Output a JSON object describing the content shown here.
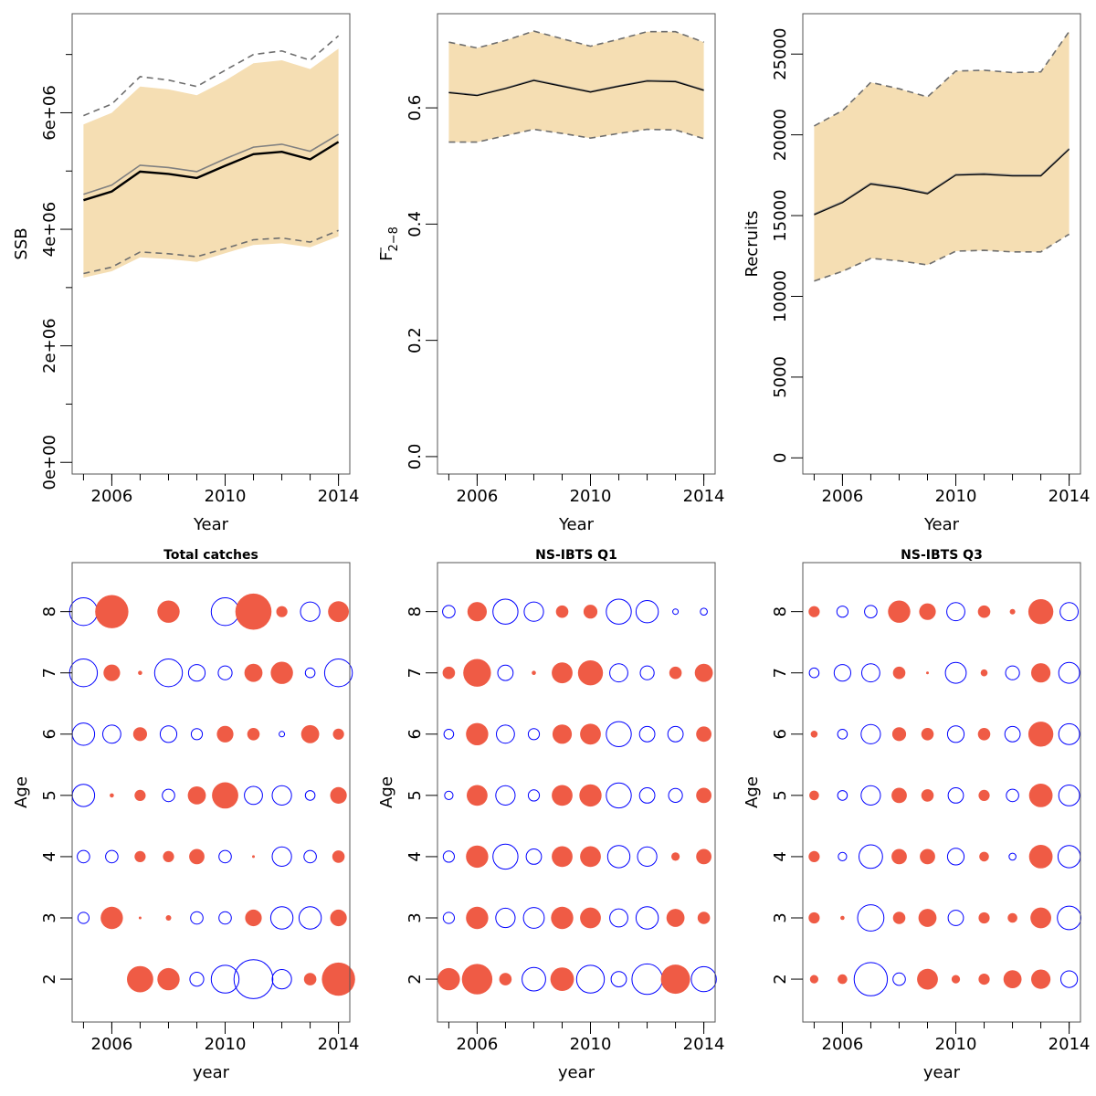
{
  "colors": {
    "ribbon": "#f5deb3",
    "estimate": "#000000",
    "second_line": "#808080",
    "band_dashed": "#6e6e6e",
    "positive": "#ef5b45",
    "negative": "#0000ff"
  },
  "chart_data": [
    {
      "type": "area",
      "panel": "ssb",
      "title": "",
      "xlabel": "Year",
      "ylabel": "SSB",
      "xlim": [
        2004.6,
        2014.4
      ],
      "ylim": [
        -200000,
        7700000
      ],
      "x_ticks": [
        2006,
        2010,
        2014
      ],
      "x_minor_ticks": [
        2005,
        2006,
        2007,
        2008,
        2009,
        2010,
        2011,
        2012,
        2013,
        2014
      ],
      "y_ticks": [
        0,
        2000000,
        4000000,
        6000000
      ],
      "y_tick_labels": [
        "0e+00",
        "2e+06",
        "4e+06",
        "6e+06"
      ],
      "y_minor_ticks": [
        1000000,
        3000000,
        5000000,
        7000000
      ],
      "x": [
        2005,
        2006,
        2007,
        2008,
        2009,
        2010,
        2011,
        2012,
        2013,
        2014
      ],
      "series": [
        {
          "role": "ribbon_upper",
          "values": [
            5800000,
            6000000,
            6450000,
            6400000,
            6300000,
            6550000,
            6850000,
            6900000,
            6750000,
            7100000
          ]
        },
        {
          "role": "ribbon_lower",
          "values": [
            3170000,
            3280000,
            3520000,
            3490000,
            3440000,
            3590000,
            3730000,
            3760000,
            3690000,
            3880000
          ]
        },
        {
          "role": "estimate",
          "values": [
            4500000,
            4650000,
            4990000,
            4950000,
            4880000,
            5090000,
            5290000,
            5330000,
            5200000,
            5500000
          ]
        },
        {
          "role": "second_estimate",
          "values": [
            4600000,
            4760000,
            5100000,
            5060000,
            4990000,
            5210000,
            5410000,
            5460000,
            5340000,
            5630000
          ]
        },
        {
          "role": "upper_dashed",
          "values": [
            5950000,
            6150000,
            6620000,
            6560000,
            6450000,
            6730000,
            7000000,
            7060000,
            6900000,
            7320000
          ]
        },
        {
          "role": "lower_dashed",
          "values": [
            3240000,
            3350000,
            3610000,
            3580000,
            3530000,
            3670000,
            3820000,
            3850000,
            3780000,
            3980000
          ]
        }
      ]
    },
    {
      "type": "area",
      "panel": "fbar",
      "title": "",
      "xlabel": "Year",
      "ylabel": "F",
      "ylabel_sub": "2−8",
      "xlim": [
        2004.6,
        2014.4
      ],
      "ylim": [
        -0.03,
        0.762
      ],
      "x_ticks": [
        2006,
        2010,
        2014
      ],
      "x_minor_ticks": [
        2005,
        2006,
        2007,
        2008,
        2009,
        2010,
        2011,
        2012,
        2013,
        2014
      ],
      "y_ticks": [
        0,
        0.2,
        0.4,
        0.6
      ],
      "y_tick_labels": [
        "0.0",
        "0.2",
        "0.4",
        "0.6"
      ],
      "y_minor_ticks": [],
      "x": [
        2005,
        2006,
        2007,
        2008,
        2009,
        2010,
        2011,
        2012,
        2013,
        2014
      ],
      "series": [
        {
          "role": "ribbon_upper",
          "values": [
            0.713,
            0.703,
            0.716,
            0.732,
            0.719,
            0.706,
            0.718,
            0.731,
            0.731,
            0.713
          ]
        },
        {
          "role": "ribbon_lower",
          "values": [
            0.541,
            0.541,
            0.552,
            0.563,
            0.556,
            0.548,
            0.556,
            0.563,
            0.562,
            0.547
          ]
        },
        {
          "role": "estimate",
          "values": [
            0.626,
            0.621,
            0.633,
            0.647,
            0.637,
            0.627,
            0.637,
            0.646,
            0.645,
            0.63
          ]
        },
        {
          "role": "second_estimate",
          "values": [
            0.627,
            0.622,
            0.634,
            0.648,
            0.638,
            0.628,
            0.638,
            0.647,
            0.646,
            0.631
          ]
        },
        {
          "role": "upper_dashed",
          "values": [
            0.713,
            0.703,
            0.716,
            0.732,
            0.719,
            0.706,
            0.718,
            0.731,
            0.731,
            0.713
          ]
        },
        {
          "role": "lower_dashed",
          "values": [
            0.541,
            0.541,
            0.552,
            0.563,
            0.556,
            0.548,
            0.556,
            0.563,
            0.562,
            0.547
          ]
        }
      ]
    },
    {
      "type": "area",
      "panel": "recruits",
      "title": "",
      "xlabel": "Year",
      "ylabel": "Recruits",
      "xlim": [
        2004.6,
        2014.4
      ],
      "ylim": [
        -1000,
        27500
      ],
      "x_ticks": [
        2006,
        2010,
        2014
      ],
      "x_minor_ticks": [
        2005,
        2006,
        2007,
        2008,
        2009,
        2010,
        2011,
        2012,
        2013,
        2014
      ],
      "y_ticks": [
        0,
        5000,
        10000,
        15000,
        20000,
        25000
      ],
      "y_tick_labels": [
        "0",
        "5000",
        "10000",
        "15000",
        "20000",
        "25000"
      ],
      "y_minor_ticks": [],
      "x": [
        2005,
        2006,
        2007,
        2008,
        2009,
        2010,
        2011,
        2012,
        2013,
        2014
      ],
      "series": [
        {
          "role": "ribbon_upper",
          "values": [
            20550,
            21500,
            23250,
            22850,
            22350,
            23950,
            24000,
            23850,
            23900,
            26400
          ]
        },
        {
          "role": "ribbon_lower",
          "values": [
            10950,
            11550,
            12350,
            12200,
            11950,
            12800,
            12850,
            12750,
            12750,
            13850
          ]
        },
        {
          "role": "estimate",
          "values": [
            15050,
            15800,
            16950,
            16700,
            16350,
            17500,
            17550,
            17450,
            17450,
            19100
          ]
        },
        {
          "role": "second_estimate",
          "values": [
            15100,
            15850,
            17000,
            16750,
            16400,
            17550,
            17600,
            17500,
            17500,
            19150
          ]
        },
        {
          "role": "upper_dashed",
          "values": [
            20550,
            21500,
            23250,
            22850,
            22350,
            23950,
            24000,
            23850,
            23900,
            26400
          ]
        },
        {
          "role": "lower_dashed",
          "values": [
            10950,
            11550,
            12350,
            12200,
            11950,
            12800,
            12850,
            12750,
            12750,
            13850
          ]
        }
      ]
    },
    {
      "type": "scatter",
      "panel": "total_catches",
      "title": "Total catches",
      "xlabel": "year",
      "ylabel": "Age",
      "xlim": [
        2004.6,
        2014.4
      ],
      "ylim": [
        1.3,
        8.8
      ],
      "x_ticks": [
        2006,
        2010,
        2014
      ],
      "x_minor_ticks": [
        2005,
        2006,
        2007,
        2008,
        2009,
        2010,
        2011,
        2012,
        2013,
        2014
      ],
      "y_ticks": [
        2,
        3,
        4,
        5,
        6,
        7,
        8
      ],
      "years": [
        2005,
        2006,
        2007,
        2008,
        2009,
        2010,
        2011,
        2012,
        2013,
        2014
      ],
      "ages": [
        2,
        3,
        4,
        5,
        6,
        7,
        8
      ],
      "residuals": [
        [
          0,
          0,
          1.9,
          1.6,
          -1.0,
          -2.0,
          -2.8,
          -1.4,
          0.9,
          2.4
        ],
        [
          -0.8,
          1.6,
          0.2,
          0.4,
          -0.9,
          -0.9,
          1.2,
          -1.6,
          -1.6,
          1.2
        ],
        [
          -0.9,
          -0.9,
          0.8,
          0.8,
          1.1,
          -0.9,
          0.2,
          -1.4,
          -0.9,
          0.9
        ],
        [
          -1.6,
          0.3,
          0.8,
          -0.9,
          1.3,
          1.9,
          -1.3,
          -1.4,
          -0.7,
          1.2
        ],
        [
          -1.6,
          -1.3,
          1.0,
          -1.2,
          -0.8,
          1.2,
          0.9,
          -0.4,
          1.3,
          0.8
        ],
        [
          -2.0,
          1.2,
          0.3,
          -2.0,
          -1.2,
          -1.0,
          1.3,
          1.6,
          -0.7,
          -2.0
        ],
        [
          -2.0,
          2.4,
          0,
          1.6,
          0,
          -2.0,
          2.6,
          0.8,
          -1.4,
          1.5
        ]
      ]
    },
    {
      "type": "scatter",
      "panel": "ns_ibts_q1",
      "title": "NS-IBTS Q1",
      "xlabel": "year",
      "ylabel": "Age",
      "xlim": [
        2004.6,
        2014.4
      ],
      "ylim": [
        1.3,
        8.8
      ],
      "x_ticks": [
        2006,
        2010,
        2014
      ],
      "x_minor_ticks": [
        2005,
        2006,
        2007,
        2008,
        2009,
        2010,
        2011,
        2012,
        2013,
        2014
      ],
      "y_ticks": [
        2,
        3,
        4,
        5,
        6,
        7,
        8
      ],
      "years": [
        2005,
        2006,
        2007,
        2008,
        2009,
        2010,
        2011,
        2012,
        2013,
        2014
      ],
      "ages": [
        2,
        3,
        4,
        5,
        6,
        7,
        8
      ],
      "residuals": [
        [
          1.6,
          2.2,
          0.9,
          -1.7,
          1.7,
          -2.0,
          -1.1,
          -2.2,
          2.1,
          -1.8
        ],
        [
          -0.8,
          1.6,
          -1.4,
          -1.5,
          1.6,
          1.5,
          -1.3,
          -1.6,
          1.3,
          0.9
        ],
        [
          -0.8,
          1.6,
          -1.8,
          -1.1,
          1.5,
          1.5,
          -1.6,
          -1.4,
          0.6,
          1.1
        ],
        [
          -0.6,
          1.5,
          -1.4,
          -0.8,
          1.5,
          1.6,
          -1.8,
          -1.1,
          -1.0,
          1.1
        ],
        [
          -0.7,
          1.6,
          -1.3,
          -0.8,
          1.4,
          1.5,
          -1.8,
          -1.1,
          -1.1,
          1.1
        ],
        [
          0.9,
          2.0,
          -1.1,
          0.3,
          1.5,
          1.8,
          -1.3,
          -1.0,
          0.9,
          1.3
        ],
        [
          -0.9,
          1.4,
          -1.8,
          -1.4,
          0.9,
          1.0,
          -1.8,
          -1.6,
          -0.4,
          -0.5
        ]
      ]
    },
    {
      "type": "scatter",
      "panel": "ns_ibts_q3",
      "title": "NS-IBTS Q3",
      "xlabel": "year",
      "ylabel": "Age",
      "xlim": [
        2004.6,
        2014.4
      ],
      "ylim": [
        1.3,
        8.8
      ],
      "x_ticks": [
        2006,
        2010,
        2014
      ],
      "x_minor_ticks": [
        2005,
        2006,
        2007,
        2008,
        2009,
        2010,
        2011,
        2012,
        2013,
        2014
      ],
      "y_ticks": [
        2,
        3,
        4,
        5,
        6,
        7,
        8
      ],
      "years": [
        2005,
        2006,
        2007,
        2008,
        2009,
        2010,
        2011,
        2012,
        2013,
        2014
      ],
      "ages": [
        2,
        3,
        4,
        5,
        6,
        7,
        8
      ],
      "residuals": [
        [
          0.6,
          0.7,
          -2.4,
          -0.9,
          1.5,
          0.6,
          0.8,
          1.3,
          1.4,
          -1.2
        ],
        [
          0.8,
          0.3,
          -1.9,
          0.9,
          1.3,
          -1.1,
          0.8,
          0.7,
          1.5,
          -1.7
        ],
        [
          0.8,
          -0.6,
          -1.7,
          1.1,
          1.1,
          -1.2,
          0.7,
          -0.5,
          1.7,
          -1.6
        ],
        [
          0.7,
          -0.7,
          -1.4,
          1.1,
          0.9,
          -1.1,
          0.8,
          -0.9,
          1.7,
          -1.5
        ],
        [
          0.5,
          -0.7,
          -1.4,
          1.0,
          0.9,
          -1.2,
          0.9,
          -1.1,
          1.8,
          -1.5
        ],
        [
          -0.7,
          -1.2,
          -1.3,
          0.9,
          0.2,
          -1.5,
          0.5,
          -1.0,
          1.4,
          -1.5
        ],
        [
          0.8,
          -0.8,
          -0.9,
          1.6,
          1.2,
          -1.3,
          0.9,
          0.4,
          1.8,
          -1.3
        ]
      ]
    }
  ]
}
